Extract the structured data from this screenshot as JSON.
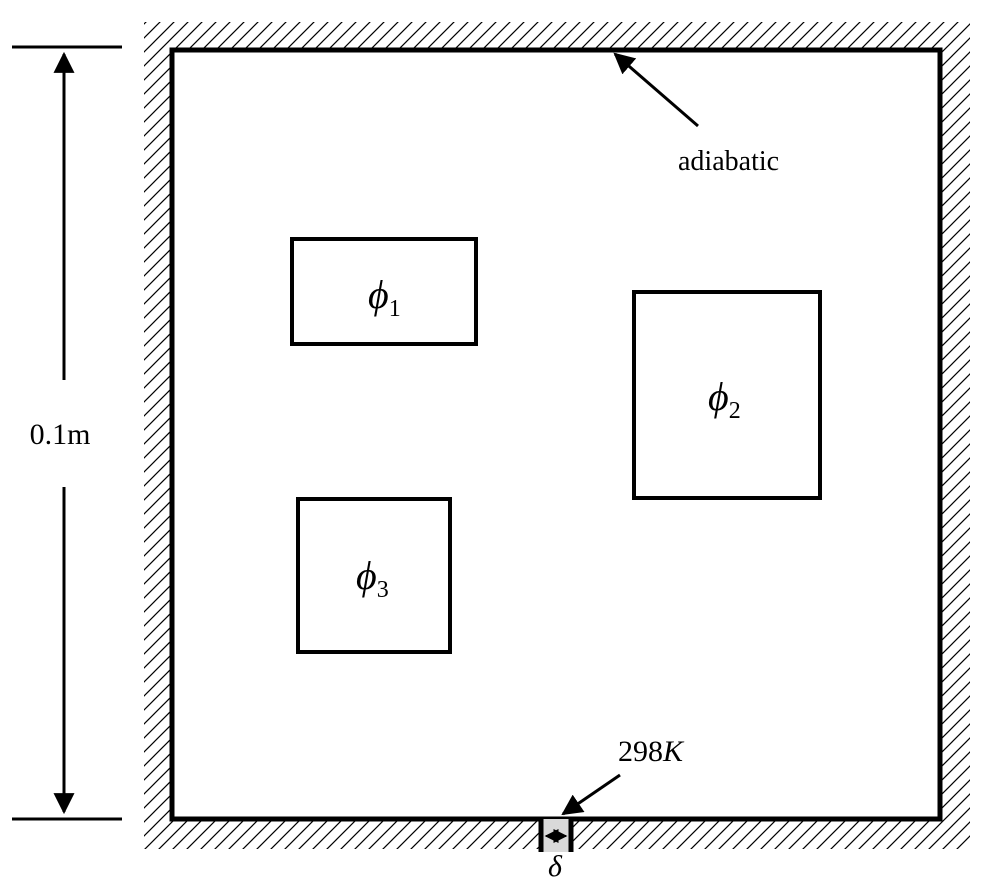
{
  "labels": {
    "height": "0.1m",
    "adiabatic": "adiabatic",
    "sink_temp_value": "298",
    "sink_temp_unit": "K",
    "gap_symbol": "δ"
  },
  "sources": [
    {
      "symbol": "ϕ",
      "subscript": "1"
    },
    {
      "symbol": "ϕ",
      "subscript": "2"
    },
    {
      "symbol": "ϕ",
      "subscript": "3"
    }
  ],
  "colors": {
    "stroke": "#000000",
    "background": "#ffffff",
    "sink_fill": "#d9d9d9"
  }
}
